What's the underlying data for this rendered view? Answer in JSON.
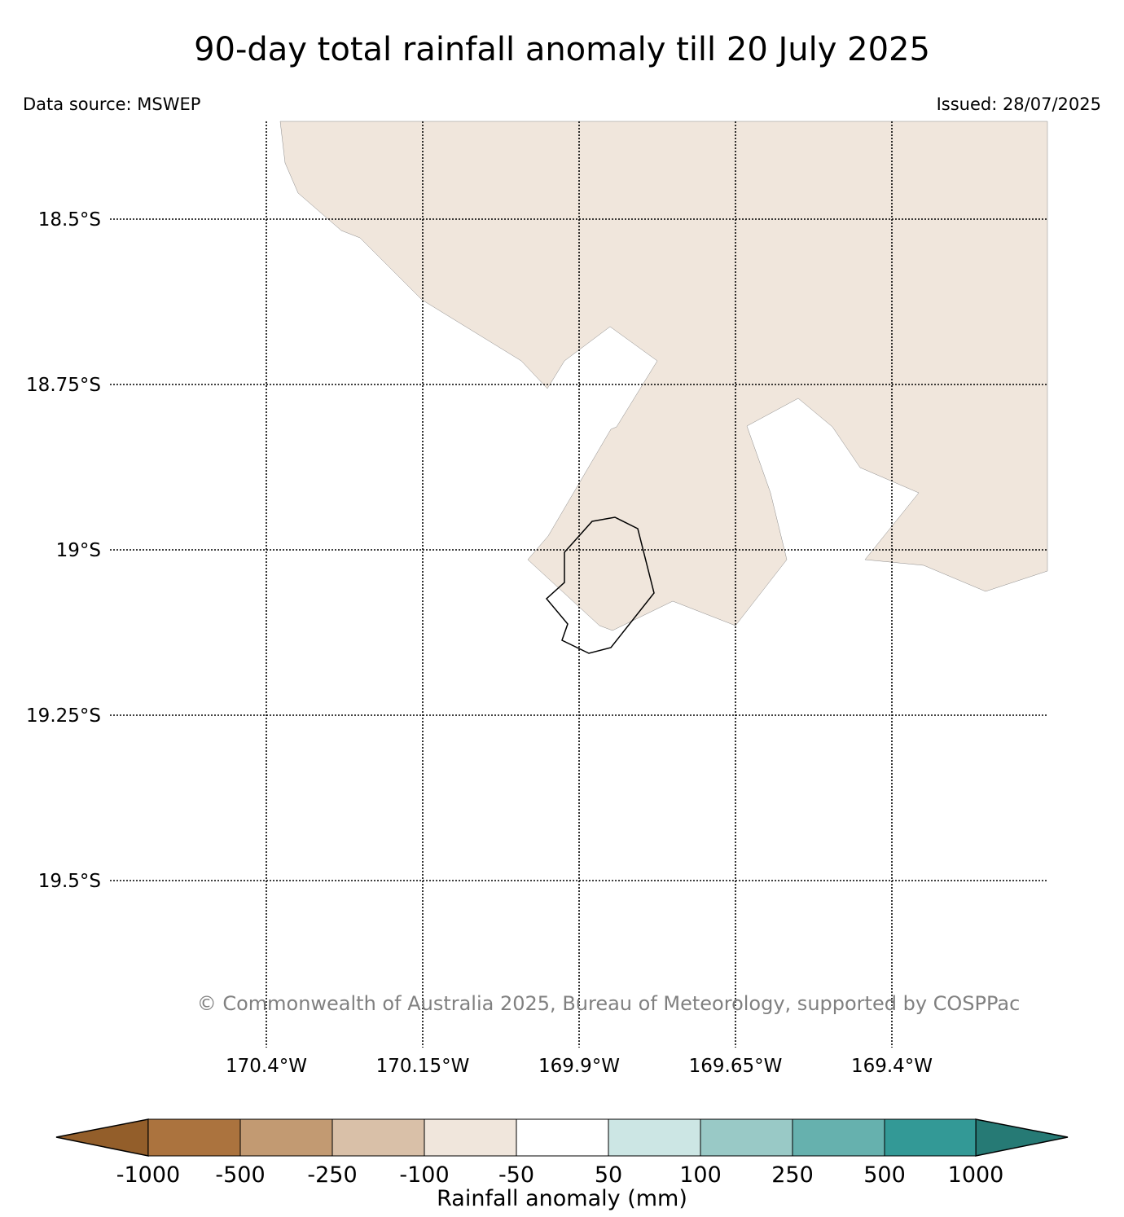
{
  "title": "90-day total rainfall anomaly till 20 July 2025",
  "data_source": "Data source: MSWEP",
  "issued": "Issued: 28/07/2025",
  "copyright": "© Commonwealth of Australia 2025, Bureau of Meteorology, supported by COSPPac",
  "map": {
    "latitude_labels": [
      "18.5°S",
      "18.75°S",
      "19°S",
      "19.25°S",
      "19.5°S"
    ],
    "longitude_labels": [
      "170.4°W",
      "170.15°W",
      "169.9°W",
      "169.65°W",
      "169.4°W"
    ],
    "grid": "dotted",
    "filled_class": "-100 to -50 mm",
    "outline_feature": "island coastline"
  },
  "colorbar": {
    "title": "Rainfall anomaly (mm)",
    "tick_labels": [
      "-1000",
      "-500",
      "-250",
      "-100",
      "-50",
      "50",
      "100",
      "250",
      "500",
      "1000"
    ],
    "extend_low_color": "#935e2a",
    "extend_high_color": "#267a75",
    "colors": [
      "#ab733e",
      "#c29a72",
      "#d9c0a8",
      "#f0e6dc",
      "#ffffff",
      "#cce6e4",
      "#99c9c6",
      "#66b1ae",
      "#339996"
    ]
  },
  "colors": {
    "land_fill": "#f0e6dc",
    "copyright_text": "#808080"
  }
}
